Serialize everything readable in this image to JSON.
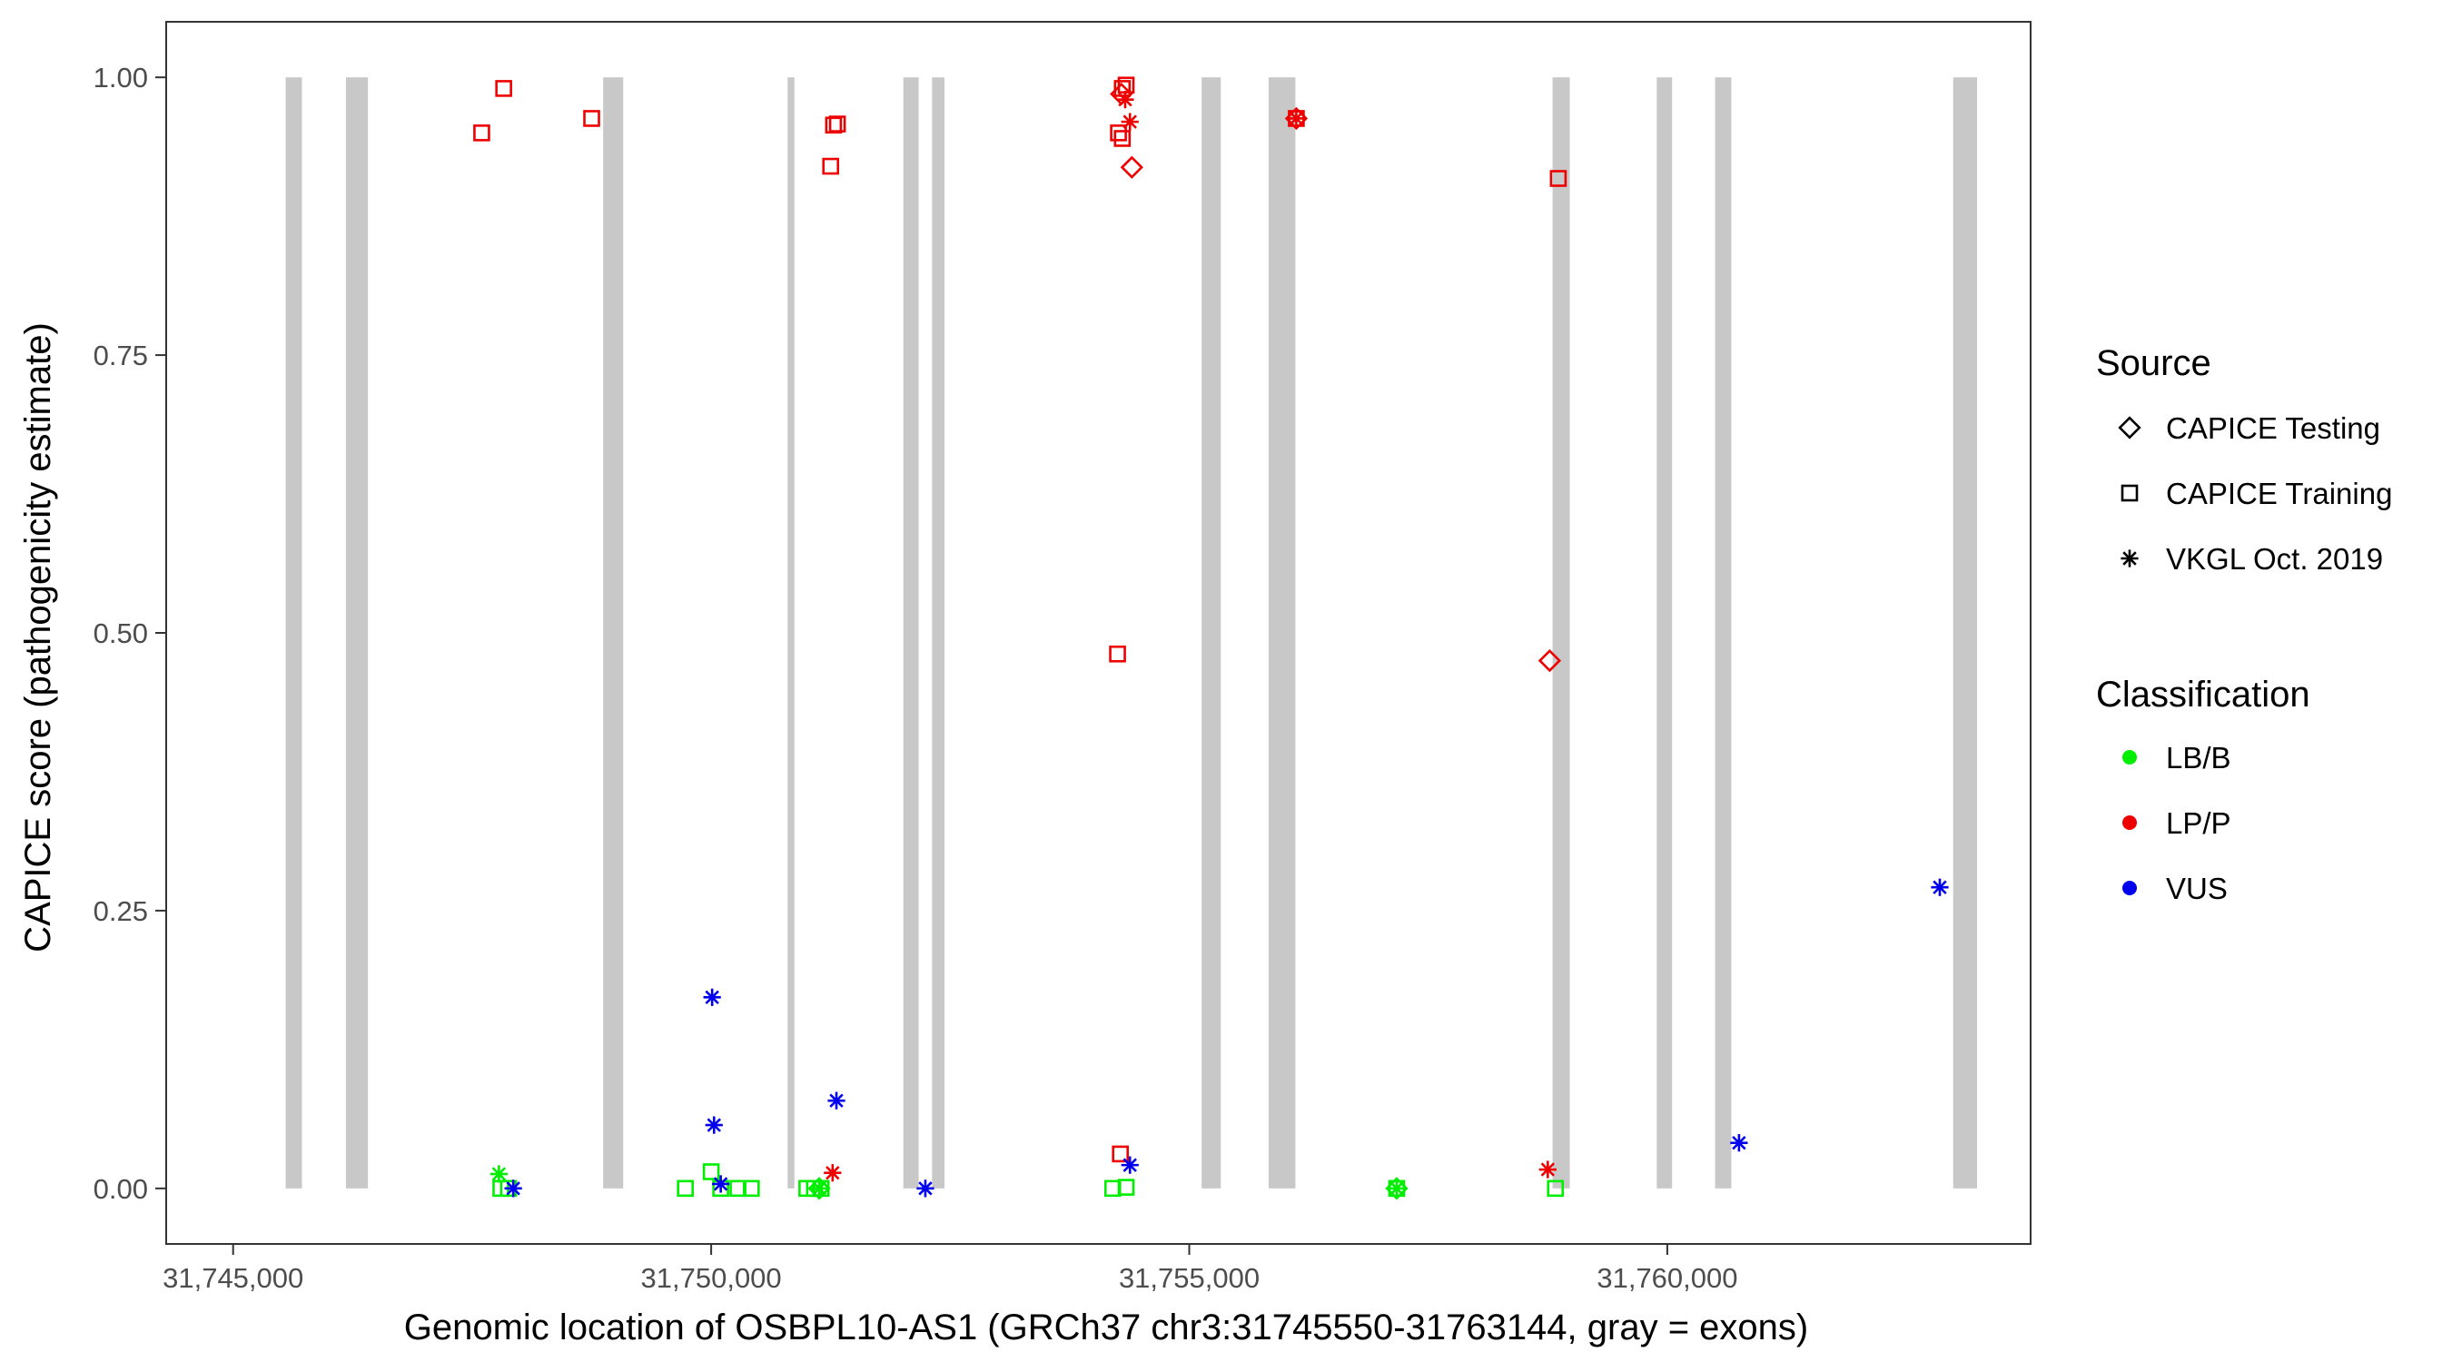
{
  "chart_data": {
    "type": "scatter",
    "title": "",
    "xlabel": "Genomic location of OSBPL10-AS1 (GRCh37 chr3:31745550-31763144, gray = exons)",
    "ylabel": "CAPICE score (pathogenicity estimate)",
    "xlim": [
      31744300,
      31763800
    ],
    "ylim": [
      -0.05,
      1.05
    ],
    "x_ticks": [
      31745000,
      31750000,
      31755000,
      31760000
    ],
    "x_tick_labels": [
      "31,745,000",
      "31,750,000",
      "31,755,000",
      "31,760,000"
    ],
    "y_ticks": [
      0,
      0.25,
      0.5,
      0.75,
      1
    ],
    "y_tick_labels": [
      "0.00",
      "0.25",
      "0.50",
      "0.75",
      "1.00"
    ],
    "grid": false,
    "legend_position": "right",
    "exons": [
      [
        31745550,
        31745720
      ],
      [
        31746180,
        31746410
      ],
      [
        31748870,
        31749080
      ],
      [
        31750800,
        31750870
      ],
      [
        31752010,
        31752170
      ],
      [
        31752310,
        31752440
      ],
      [
        31755130,
        31755330
      ],
      [
        31755830,
        31756110
      ],
      [
        31758800,
        31758980
      ],
      [
        31759890,
        31760050
      ],
      [
        31760500,
        31760670
      ],
      [
        31762990,
        31763240
      ]
    ],
    "colors": {
      "exon": "#c8c8c8",
      "LB/B": "#00ee00",
      "LP/P": "#ee0000",
      "VUS": "#0000ee"
    },
    "legend": {
      "source_title": "Source",
      "source_items": [
        {
          "label": "CAPICE Testing",
          "shape": "diamond"
        },
        {
          "label": "CAPICE Training",
          "shape": "square"
        },
        {
          "label": "VKGL Oct. 2019",
          "shape": "star"
        }
      ],
      "class_title": "Classification",
      "class_items": [
        {
          "label": "LB/B"
        },
        {
          "label": "LP/P"
        },
        {
          "label": "VUS"
        }
      ]
    },
    "series": [
      {
        "source": "CAPICE Training",
        "classification": "LP/P",
        "points": [
          [
            31747600,
            0.95
          ],
          [
            31747830,
            0.99
          ],
          [
            31748750,
            0.963
          ],
          [
            31751280,
            0.957
          ],
          [
            31751320,
            0.958
          ],
          [
            31751250,
            0.92
          ],
          [
            31754300,
            0.99
          ],
          [
            31754340,
            0.993
          ],
          [
            31754260,
            0.95
          ],
          [
            31754300,
            0.945
          ],
          [
            31754250,
            0.481
          ],
          [
            31754280,
            0.031
          ],
          [
            31756120,
            0.963
          ],
          [
            31758860,
            0.909
          ]
        ]
      },
      {
        "source": "CAPICE Training",
        "classification": "LB/B",
        "points": [
          [
            31747800,
            0.0
          ],
          [
            31747880,
            0.0
          ],
          [
            31749730,
            0.0
          ],
          [
            31750000,
            0.015
          ],
          [
            31750100,
            0.0
          ],
          [
            31750280,
            0.0
          ],
          [
            31750420,
            0.0
          ],
          [
            31751000,
            0.0
          ],
          [
            31751080,
            0.0
          ],
          [
            31751150,
            0.0
          ],
          [
            31754200,
            0.0
          ],
          [
            31754340,
            0.001
          ],
          [
            31757170,
            0.0
          ],
          [
            31758830,
            0.0
          ]
        ]
      },
      {
        "source": "CAPICE Testing",
        "classification": "LP/P",
        "points": [
          [
            31754290,
            0.985
          ],
          [
            31754400,
            0.919
          ],
          [
            31756120,
            0.963
          ],
          [
            31758770,
            0.475
          ]
        ]
      },
      {
        "source": "CAPICE Testing",
        "classification": "LB/B",
        "points": [
          [
            31751130,
            0.0
          ],
          [
            31757170,
            0.0
          ]
        ]
      },
      {
        "source": "VKGL Oct. 2019",
        "classification": "LP/P",
        "points": [
          [
            31754330,
            0.98
          ],
          [
            31754380,
            0.96
          ],
          [
            31756120,
            0.963
          ],
          [
            31751270,
            0.014
          ],
          [
            31758750,
            0.017
          ]
        ]
      },
      {
        "source": "VKGL Oct. 2019",
        "classification": "LB/B",
        "points": [
          [
            31747780,
            0.013
          ],
          [
            31751130,
            0.0
          ],
          [
            31757170,
            0.0
          ]
        ]
      },
      {
        "source": "VKGL Oct. 2019",
        "classification": "VUS",
        "points": [
          [
            31747930,
            0.0
          ],
          [
            31750010,
            0.172
          ],
          [
            31750030,
            0.057
          ],
          [
            31750100,
            0.004
          ],
          [
            31751310,
            0.079
          ],
          [
            31752240,
            0.0
          ],
          [
            31754380,
            0.021
          ],
          [
            31760750,
            0.041
          ],
          [
            31762850,
            0.271
          ]
        ]
      }
    ]
  }
}
